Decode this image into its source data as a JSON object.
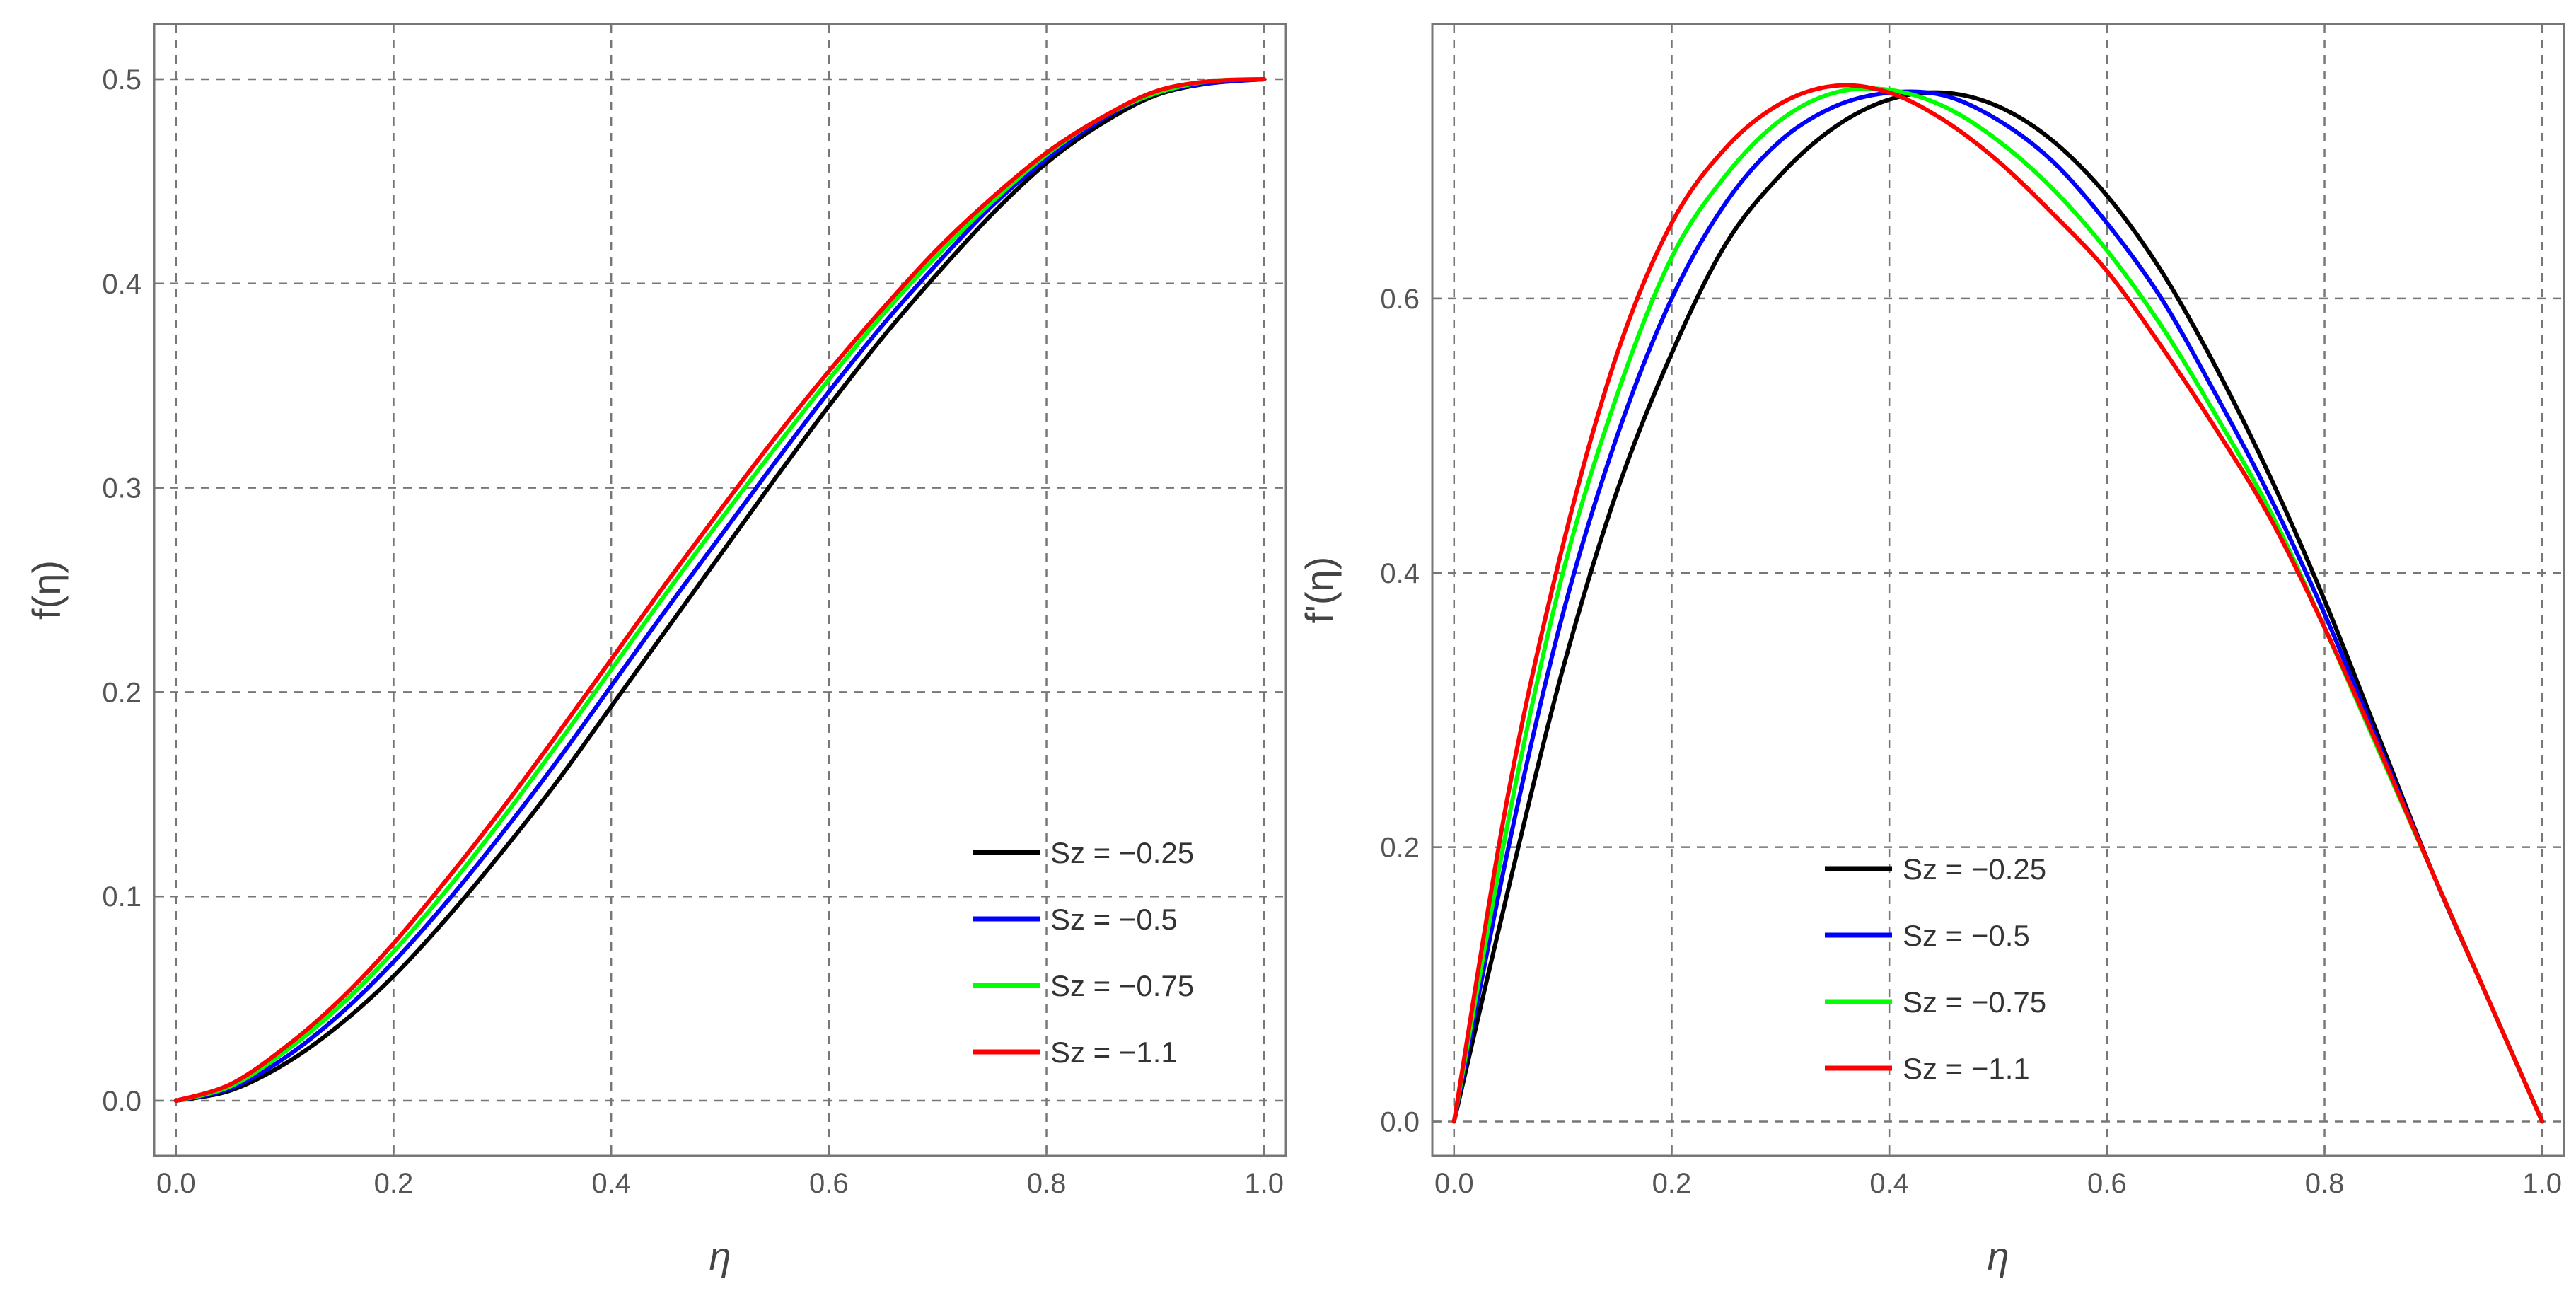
{
  "chart_data": [
    {
      "type": "line",
      "id": "left",
      "xlabel": "η",
      "ylabel": "f(η)",
      "xlim": [
        -0.02,
        1.02
      ],
      "ylim": [
        -0.027,
        0.527
      ],
      "xticks": [
        0.0,
        0.2,
        0.4,
        0.6,
        0.8,
        1.0
      ],
      "xtick_labels": [
        "0.0",
        "0.2",
        "0.4",
        "0.6",
        "0.8",
        "1.0"
      ],
      "yticks": [
        0.0,
        0.1,
        0.2,
        0.3,
        0.4,
        0.5
      ],
      "ytick_labels": [
        "0.0",
        "0.1",
        "0.2",
        "0.3",
        "0.4",
        "0.5"
      ],
      "grid": true,
      "legend_position": "bottom-right",
      "x": [
        0.0,
        0.05,
        0.1,
        0.15,
        0.2,
        0.25,
        0.3,
        0.35,
        0.4,
        0.45,
        0.5,
        0.55,
        0.6,
        0.65,
        0.7,
        0.75,
        0.8,
        0.85,
        0.9,
        0.95,
        1.0
      ],
      "series": [
        {
          "name": "Sz = −0.25",
          "color": "#000000",
          "values": [
            0.0,
            0.005,
            0.018,
            0.037,
            0.061,
            0.09,
            0.122,
            0.156,
            0.193,
            0.23,
            0.267,
            0.304,
            0.34,
            0.374,
            0.405,
            0.434,
            0.459,
            0.478,
            0.492,
            0.498,
            0.5
          ]
        },
        {
          "name": "Sz = −0.5",
          "color": "#0000ff",
          "values": [
            0.0,
            0.006,
            0.021,
            0.042,
            0.068,
            0.098,
            0.131,
            0.166,
            0.203,
            0.24,
            0.276,
            0.312,
            0.347,
            0.38,
            0.41,
            0.438,
            0.461,
            0.48,
            0.493,
            0.498,
            0.5
          ]
        },
        {
          "name": "Sz = −0.75",
          "color": "#00ff00",
          "values": [
            0.0,
            0.007,
            0.024,
            0.046,
            0.073,
            0.104,
            0.138,
            0.174,
            0.211,
            0.248,
            0.284,
            0.319,
            0.353,
            0.385,
            0.414,
            0.44,
            0.463,
            0.481,
            0.493,
            0.499,
            0.5
          ]
        },
        {
          "name": "Sz = −1.1",
          "color": "#ff0000",
          "values": [
            0.0,
            0.008,
            0.026,
            0.049,
            0.077,
            0.109,
            0.143,
            0.179,
            0.216,
            0.253,
            0.289,
            0.324,
            0.357,
            0.388,
            0.417,
            0.442,
            0.464,
            0.481,
            0.494,
            0.499,
            0.5
          ]
        }
      ]
    },
    {
      "type": "line",
      "id": "right",
      "xlabel": "η",
      "ylabel": "f'(η)",
      "xlim": [
        -0.02,
        1.02
      ],
      "ylim": [
        -0.025,
        0.8
      ],
      "xticks": [
        0.0,
        0.2,
        0.4,
        0.6,
        0.8,
        1.0
      ],
      "xtick_labels": [
        "0.0",
        "0.2",
        "0.4",
        "0.6",
        "0.8",
        "1.0"
      ],
      "yticks": [
        0.0,
        0.2,
        0.4,
        0.6
      ],
      "ytick_labels": [
        "0.0",
        "0.2",
        "0.4",
        "0.6"
      ],
      "grid": true,
      "legend_position": "bottom-center",
      "x": [
        0.0,
        0.05,
        0.1,
        0.15,
        0.2,
        0.25,
        0.3,
        0.35,
        0.4,
        0.45,
        0.5,
        0.55,
        0.6,
        0.65,
        0.7,
        0.75,
        0.8,
        0.85,
        0.9,
        0.95,
        1.0
      ],
      "series": [
        {
          "name": "Sz = −0.25",
          "color": "#000000",
          "values": [
            0.0,
            0.17,
            0.33,
            0.46,
            0.56,
            0.64,
            0.69,
            0.725,
            0.745,
            0.75,
            0.74,
            0.715,
            0.675,
            0.62,
            0.55,
            0.47,
            0.38,
            0.28,
            0.18,
            0.09,
            0.0
          ]
        },
        {
          "name": "Sz = −0.5",
          "color": "#0000ff",
          "values": [
            0.0,
            0.2,
            0.37,
            0.5,
            0.6,
            0.67,
            0.715,
            0.74,
            0.75,
            0.748,
            0.73,
            0.7,
            0.655,
            0.6,
            0.53,
            0.455,
            0.37,
            0.275,
            0.18,
            0.09,
            0.0
          ]
        },
        {
          "name": "Sz = −0.75",
          "color": "#00ff00",
          "values": [
            0.0,
            0.22,
            0.4,
            0.53,
            0.63,
            0.69,
            0.73,
            0.75,
            0.752,
            0.74,
            0.715,
            0.68,
            0.635,
            0.58,
            0.515,
            0.445,
            0.36,
            0.27,
            0.18,
            0.09,
            0.0
          ]
        },
        {
          "name": "Sz = −1.1",
          "color": "#ff0000",
          "values": [
            0.0,
            0.24,
            0.42,
            0.56,
            0.655,
            0.71,
            0.742,
            0.755,
            0.75,
            0.73,
            0.7,
            0.662,
            0.62,
            0.565,
            0.505,
            0.44,
            0.36,
            0.272,
            0.18,
            0.09,
            0.0
          ]
        }
      ]
    }
  ]
}
